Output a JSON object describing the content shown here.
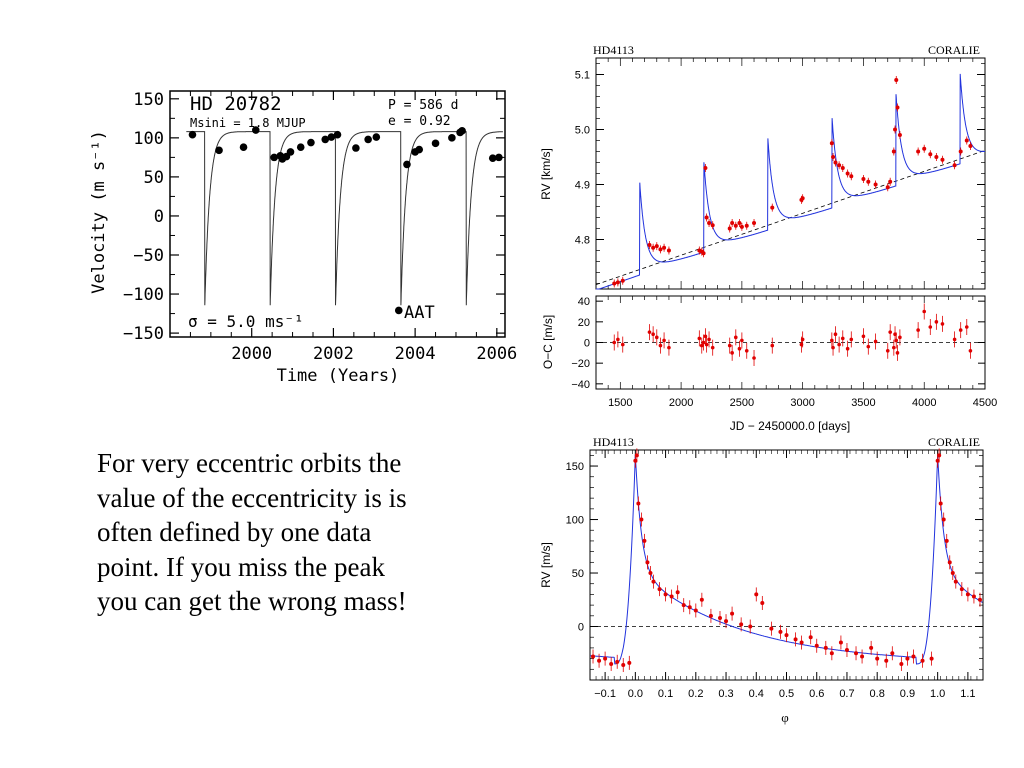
{
  "slide": {
    "body_text": "For very eccentric orbits the value of the eccentricity is  is often defined by one data point. If you miss the peak you can get the wrong mass!"
  },
  "chart_data": [
    {
      "id": "hd20782",
      "type": "scatter",
      "title": "HD 20782",
      "annotations": {
        "msini": "Msini = 1.8 MJUP",
        "period": "P = 586 d",
        "ecc": "e = 0.92",
        "sigma": "σ = 5.0 ms⁻¹",
        "instrument": "AAT"
      },
      "xlabel": "Time (Years)",
      "ylabel": "Velocity (m s⁻¹)",
      "xlim": [
        1998.0,
        2006.2
      ],
      "ylim": [
        -155,
        160
      ],
      "xticks": [
        2000,
        2002,
        2004,
        2006
      ],
      "yticks": [
        150,
        100,
        50,
        0,
        -50,
        -100,
        -150
      ],
      "series": [
        {
          "marker": "filled-circle",
          "color": "#000000",
          "x": [
            1998.55,
            1999.2,
            1999.8,
            2000.1,
            2000.55,
            2000.7,
            2000.75,
            2000.85,
            2000.95,
            2001.2,
            2001.45,
            2001.8,
            2001.95,
            2002.1,
            2002.55,
            2002.85,
            2003.05,
            2003.6,
            2003.8,
            2004.0,
            2004.1,
            2004.5,
            2004.9,
            2005.1,
            2005.15,
            2005.9,
            2006.05
          ],
          "y": [
            104,
            84,
            88,
            110,
            75,
            77,
            73,
            76,
            82,
            88,
            94,
            98,
            101,
            104,
            87,
            98,
            101,
            -121,
            66,
            82,
            85,
            93,
            100,
            107,
            109,
            74,
            75
          ]
        }
      ],
      "model": {
        "type": "keplerian",
        "period_years": 1.605,
        "periastron_years": [
          1998.85,
          2000.45,
          2002.05,
          2003.65,
          2005.25
        ],
        "min": -118,
        "max": 108
      },
      "grid": false,
      "legend": "none"
    },
    {
      "id": "hd4113-time",
      "type": "scatter",
      "label_left": "HD4113",
      "label_right": "CORALIE",
      "xlabel": "JD − 2450000.0 [days]",
      "ylabel": "RV [km/s]",
      "xlim": [
        1300,
        4500
      ],
      "ylim": [
        4.71,
        5.13
      ],
      "xticks": [
        1500,
        2000,
        2500,
        3000,
        3500,
        4000,
        4500
      ],
      "yticks": [
        4.8,
        4.9,
        5.0,
        5.1
      ],
      "trend": {
        "x": [
          1300,
          4500
        ],
        "y": [
          4.718,
          4.962
        ]
      },
      "model": {
        "period_days": 527,
        "periastron_days": [
          1660,
          2187,
          2714,
          3241,
          3768,
          4295
        ],
        "peak_amplitude": 0.15,
        "trough": -0.03,
        "offset": 0.018
      },
      "series": [
        {
          "name": "",
          "marker": "point-errorbar",
          "color": "#e00000",
          "x": [
            1450,
            1480,
            1520,
            1740,
            1770,
            1800,
            1830,
            1860,
            1900,
            2150,
            2170,
            2185,
            2200,
            2210,
            2230,
            2260,
            2400,
            2420,
            2450,
            2480,
            2500,
            2540,
            2600,
            2750,
            2990,
            3000,
            3240,
            3250,
            3270,
            3300,
            3330,
            3370,
            3400,
            3500,
            3540,
            3600,
            3700,
            3720,
            3750,
            3760,
            3770,
            3780,
            3800,
            3950,
            4000,
            4050,
            4100,
            4150,
            4250,
            4300,
            4350,
            4380
          ],
          "y": [
            4.72,
            4.722,
            4.725,
            4.79,
            4.785,
            4.788,
            4.782,
            4.785,
            4.78,
            4.78,
            4.778,
            4.775,
            4.93,
            4.84,
            4.83,
            4.826,
            4.82,
            4.83,
            4.825,
            4.83,
            4.823,
            4.825,
            4.83,
            4.858,
            4.872,
            4.875,
            4.975,
            4.95,
            4.94,
            4.935,
            4.93,
            4.92,
            4.915,
            4.91,
            4.905,
            4.9,
            4.895,
            4.905,
            4.96,
            5.0,
            5.09,
            5.04,
            4.99,
            4.96,
            4.965,
            4.955,
            4.95,
            4.945,
            4.935,
            4.96,
            4.98,
            4.97
          ]
        }
      ],
      "grid": false,
      "legend": "none"
    },
    {
      "id": "hd4113-residuals",
      "type": "scatter",
      "ylabel": "O−C [m/s]",
      "xlim": [
        1300,
        4500
      ],
      "ylim": [
        -45,
        45
      ],
      "yticks": [
        40,
        20,
        0,
        -20,
        -40
      ],
      "zero_line": true,
      "series": [
        {
          "marker": "point-errorbar",
          "color": "#e00000",
          "x": [
            1450,
            1480,
            1520,
            1740,
            1770,
            1800,
            1830,
            1860,
            1900,
            2150,
            2170,
            2185,
            2200,
            2210,
            2230,
            2260,
            2400,
            2420,
            2450,
            2480,
            2500,
            2540,
            2600,
            2750,
            2990,
            3000,
            3240,
            3250,
            3270,
            3300,
            3330,
            3370,
            3400,
            3500,
            3540,
            3600,
            3700,
            3720,
            3750,
            3760,
            3770,
            3780,
            3800,
            3950,
            4000,
            4050,
            4100,
            4150,
            4250,
            4300,
            4350,
            4380
          ],
          "y": [
            0,
            3,
            -2,
            10,
            8,
            5,
            -3,
            2,
            -5,
            4,
            -3,
            0,
            6,
            -2,
            3,
            -5,
            -3,
            -10,
            5,
            -6,
            2,
            -8,
            -15,
            -3,
            -2,
            3,
            2,
            -5,
            8,
            -2,
            4,
            -6,
            3,
            6,
            -4,
            1,
            -8,
            10,
            -5,
            8,
            2,
            -10,
            5,
            12,
            30,
            15,
            20,
            18,
            3,
            12,
            15,
            -8
          ]
        }
      ],
      "grid": false,
      "legend": "none"
    },
    {
      "id": "hd4113-phase",
      "type": "scatter",
      "label_left": "HD4113",
      "label_right": "CORALIE",
      "xlabel": "φ",
      "ylabel": "RV [m/s]",
      "xlim": [
        -0.15,
        1.15
      ],
      "ylim": [
        -50,
        165
      ],
      "xticks": [
        -0.1,
        0.0,
        0.1,
        0.2,
        0.3,
        0.4,
        0.5,
        0.6,
        0.7,
        0.8,
        0.9,
        1.0,
        1.1
      ],
      "yticks": [
        150,
        100,
        50,
        0
      ],
      "zero_line": true,
      "model": {
        "peak": 160,
        "decay": 0.075,
        "trough": -35
      },
      "series": [
        {
          "marker": "point-errorbar",
          "color": "#e00000",
          "x": [
            -0.14,
            -0.12,
            -0.1,
            -0.08,
            -0.06,
            -0.04,
            -0.02,
            0.0,
            0.005,
            0.01,
            0.02,
            0.03,
            0.04,
            0.05,
            0.06,
            0.08,
            0.1,
            0.12,
            0.14,
            0.16,
            0.18,
            0.2,
            0.22,
            0.25,
            0.28,
            0.3,
            0.32,
            0.35,
            0.38,
            0.4,
            0.42,
            0.45,
            0.48,
            0.5,
            0.53,
            0.55,
            0.58,
            0.6,
            0.63,
            0.65,
            0.68,
            0.7,
            0.73,
            0.75,
            0.78,
            0.8,
            0.83,
            0.85,
            0.88,
            0.9,
            0.92,
            0.95,
            0.98,
            1.0,
            1.005,
            1.01,
            1.02,
            1.03,
            1.04,
            1.05,
            1.06,
            1.08,
            1.1,
            1.12,
            1.14
          ],
          "y": [
            -28,
            -32,
            -30,
            -35,
            -33,
            -36,
            -34,
            155,
            160,
            115,
            100,
            80,
            60,
            50,
            42,
            35,
            30,
            28,
            32,
            20,
            18,
            15,
            25,
            10,
            8,
            5,
            12,
            2,
            0,
            30,
            22,
            -2,
            -5,
            -8,
            -12,
            -15,
            -10,
            -18,
            -20,
            -25,
            -15,
            -22,
            -25,
            -28,
            -20,
            -30,
            -32,
            -25,
            -35,
            -30,
            -28,
            -32,
            -30,
            155,
            160,
            115,
            100,
            80,
            60,
            50,
            42,
            35,
            30,
            28,
            25
          ]
        }
      ],
      "grid": false,
      "legend": "none"
    }
  ]
}
